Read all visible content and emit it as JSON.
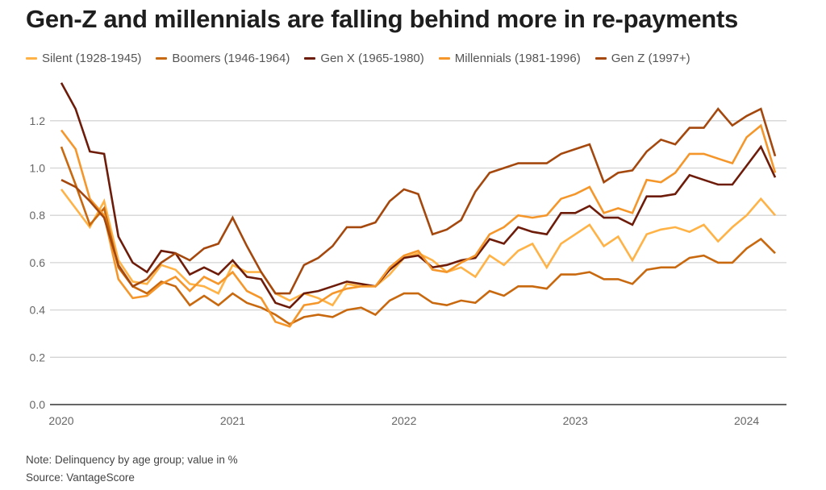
{
  "chart_data": {
    "type": "line",
    "title": "Gen-Z and millennials are falling behind more in re-payments",
    "xlabel": "",
    "ylabel": "",
    "x_tick_labels": [
      "2020",
      "2021",
      "2022",
      "2023",
      "2024"
    ],
    "y_tick_labels": [
      "0.0",
      "0.2",
      "0.4",
      "0.6",
      "0.8",
      "1.0",
      "1.2"
    ],
    "ylim": [
      0,
      1.36
    ],
    "x_start": "2020-01",
    "x_end": "2024-03",
    "x_unit": "month",
    "grid": true,
    "legend_position": "top-left",
    "series": [
      {
        "name": "Silent (1928-1945)",
        "color": "#ffb347",
        "values": [
          0.91,
          0.83,
          0.75,
          0.86,
          0.61,
          0.52,
          0.51,
          0.59,
          0.57,
          0.51,
          0.5,
          0.47,
          0.59,
          0.56,
          0.56,
          0.47,
          0.44,
          0.47,
          0.45,
          0.42,
          0.51,
          0.5,
          0.5,
          0.55,
          0.62,
          0.64,
          0.61,
          0.56,
          0.58,
          0.54,
          0.63,
          0.59,
          0.65,
          0.68,
          0.58,
          0.68,
          0.72,
          0.76,
          0.67,
          0.71,
          0.61,
          0.72,
          0.74,
          0.75,
          0.73,
          0.76,
          0.69,
          0.75,
          0.8,
          0.87,
          0.8
        ]
      },
      {
        "name": "Boomers (1946-1964)",
        "color": "#c8690f",
        "values": [
          1.09,
          0.93,
          0.76,
          0.83,
          0.58,
          0.5,
          0.47,
          0.52,
          0.5,
          0.42,
          0.46,
          0.42,
          0.47,
          0.43,
          0.41,
          0.38,
          0.34,
          0.37,
          0.38,
          0.37,
          0.4,
          0.41,
          0.38,
          0.44,
          0.47,
          0.47,
          0.43,
          0.42,
          0.44,
          0.43,
          0.48,
          0.46,
          0.5,
          0.5,
          0.49,
          0.55,
          0.55,
          0.56,
          0.53,
          0.53,
          0.51,
          0.57,
          0.58,
          0.58,
          0.62,
          0.63,
          0.6,
          0.6,
          0.66,
          0.7,
          0.64
        ]
      },
      {
        "name": "Gen X (1965-1980)",
        "color": "#6e1c0a",
        "values": [
          1.36,
          1.25,
          1.07,
          1.06,
          0.71,
          0.6,
          0.56,
          0.65,
          0.64,
          0.55,
          0.58,
          0.55,
          0.61,
          0.54,
          0.53,
          0.43,
          0.41,
          0.47,
          0.48,
          0.5,
          0.52,
          0.51,
          0.5,
          0.57,
          0.62,
          0.63,
          0.58,
          0.59,
          0.61,
          0.62,
          0.7,
          0.68,
          0.75,
          0.73,
          0.72,
          0.81,
          0.81,
          0.84,
          0.79,
          0.79,
          0.76,
          0.88,
          0.88,
          0.89,
          0.97,
          0.95,
          0.93,
          0.93,
          1.01,
          1.09,
          0.96
        ]
      },
      {
        "name": "Millennials (1981-1996)",
        "color": "#f5962a",
        "values": [
          1.16,
          1.08,
          0.87,
          0.8,
          0.53,
          0.45,
          0.46,
          0.51,
          0.54,
          0.48,
          0.54,
          0.51,
          0.56,
          0.48,
          0.45,
          0.35,
          0.33,
          0.42,
          0.43,
          0.47,
          0.49,
          0.5,
          0.5,
          0.58,
          0.63,
          0.65,
          0.57,
          0.56,
          0.6,
          0.63,
          0.72,
          0.75,
          0.8,
          0.79,
          0.8,
          0.87,
          0.89,
          0.92,
          0.81,
          0.83,
          0.81,
          0.95,
          0.94,
          0.98,
          1.06,
          1.06,
          1.04,
          1.02,
          1.13,
          1.18,
          0.98
        ]
      },
      {
        "name": "Gen Z (1997+)",
        "color": "#a4480e",
        "values": [
          0.95,
          0.92,
          0.86,
          0.79,
          0.59,
          0.5,
          0.53,
          0.6,
          0.64,
          0.61,
          0.66,
          0.68,
          0.79,
          0.67,
          0.56,
          0.47,
          0.47,
          0.59,
          0.62,
          0.67,
          0.75,
          0.75,
          0.77,
          0.86,
          0.91,
          0.89,
          0.72,
          0.74,
          0.78,
          0.9,
          0.98,
          1.0,
          1.02,
          1.02,
          1.02,
          1.06,
          1.08,
          1.1,
          0.94,
          0.98,
          0.99,
          1.07,
          1.12,
          1.1,
          1.17,
          1.17,
          1.25,
          1.18,
          1.22,
          1.25,
          1.05
        ]
      }
    ]
  },
  "footer": {
    "note": "Note: Delinquency by age group; value in %",
    "source": "Source: VantageScore"
  }
}
